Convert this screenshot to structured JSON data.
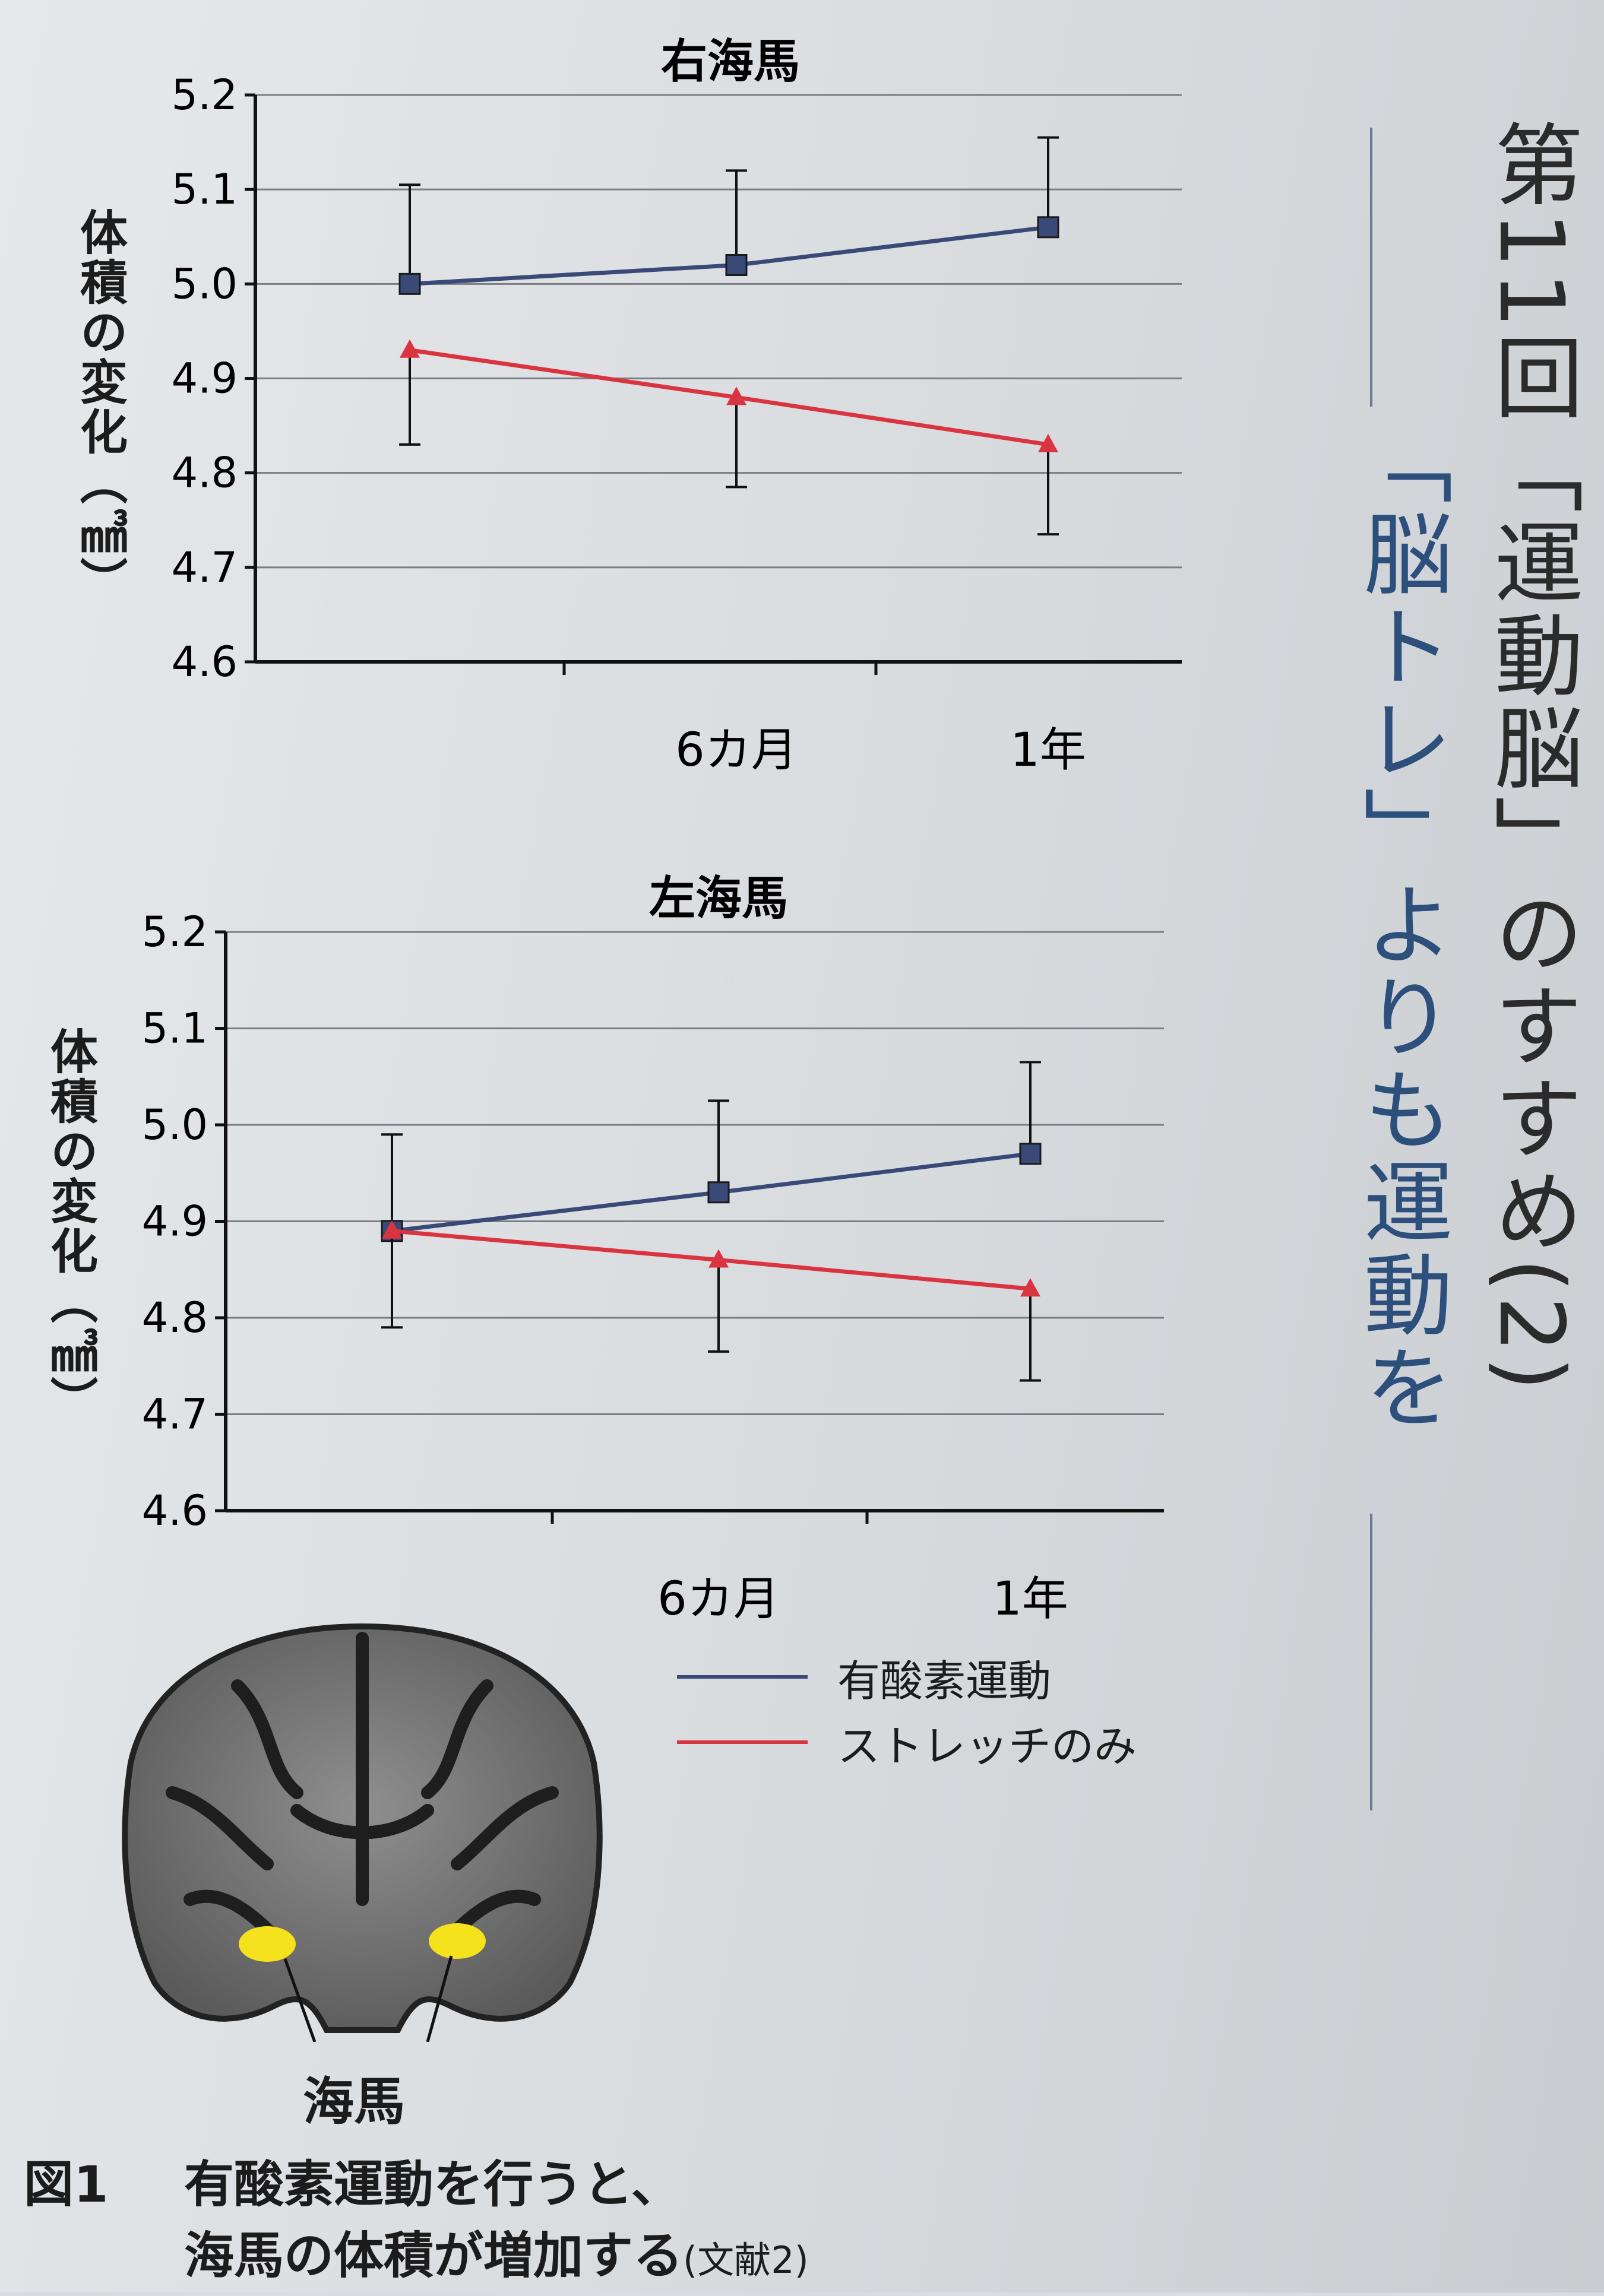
{
  "chart_data": [
    {
      "type": "line",
      "title": "右海馬",
      "ylabel": "体積の変化（㎣）",
      "ylim": [
        4.6,
        5.2
      ],
      "yticks": [
        "4.6",
        "4.7",
        "4.8",
        "4.9",
        "5.0",
        "5.1",
        "5.2"
      ],
      "xticks": [
        "",
        "6カ月",
        "1年"
      ],
      "grid": true,
      "series": [
        {
          "name": "有酸素運動",
          "color": "#3a4a78",
          "marker": "square",
          "values": [
            5.0,
            5.02,
            5.06
          ],
          "err": [
            0.105,
            0.1,
            0.095
          ]
        },
        {
          "name": "ストレッチのみ",
          "color": "#d9343f",
          "marker": "triangle",
          "values": [
            4.93,
            4.88,
            4.83
          ],
          "err": [
            0.1,
            0.095,
            0.095
          ]
        }
      ]
    },
    {
      "type": "line",
      "title": "左海馬",
      "ylabel": "体積の変化（㎣）",
      "ylim": [
        4.6,
        5.2
      ],
      "yticks": [
        "4.6",
        "4.7",
        "4.8",
        "4.9",
        "5.0",
        "5.1",
        "5.2"
      ],
      "xticks": [
        "",
        "6カ月",
        "1年"
      ],
      "grid": true,
      "series": [
        {
          "name": "有酸素運動",
          "color": "#3a4a78",
          "marker": "square",
          "values": [
            4.89,
            4.93,
            4.97
          ],
          "err": [
            0.1,
            0.095,
            0.095
          ]
        },
        {
          "name": "ストレッチのみ",
          "color": "#d9343f",
          "marker": "triangle",
          "values": [
            4.89,
            4.86,
            4.83
          ],
          "err": [
            0.1,
            0.095,
            0.095
          ]
        }
      ]
    }
  ],
  "legend": [
    {
      "label": "有酸素運動",
      "color": "#3a4a78"
    },
    {
      "label": "ストレッチのみ",
      "color": "#d9343f"
    }
  ],
  "brain": {
    "label": "海馬",
    "highlight_color": "#f4e21c"
  },
  "caption": {
    "number": "図1",
    "line1": "有酸素運動を行うと、",
    "line2": "海馬の体積が増加する",
    "reference": "(文献2)"
  },
  "side_title": {
    "main": "第11回「運動脳」のすすめ(2)",
    "sub": "「脳トレ」よりも運動を"
  }
}
